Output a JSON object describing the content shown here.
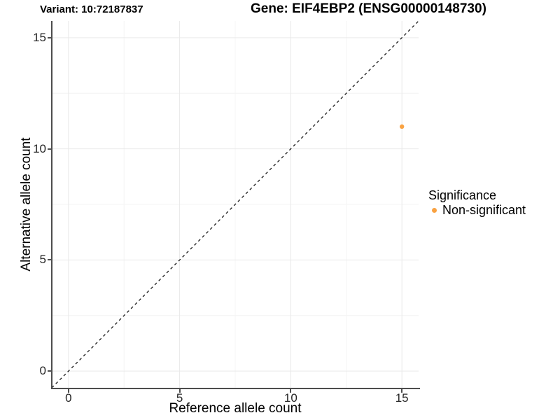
{
  "chart_data": {
    "type": "scatter",
    "title_left": "Variant: 10:72187837",
    "title_right": "Gene: EIF4EBP2 (ENSG00000148730)",
    "xlabel": "Reference allele count",
    "ylabel": "Alternative allele count",
    "xlim": [
      -0.75,
      15.75
    ],
    "ylim": [
      -0.75,
      15.75
    ],
    "x_ticks": [
      0,
      5,
      10,
      15
    ],
    "y_ticks": [
      0,
      5,
      10,
      15
    ],
    "x_minor_ticks": [
      2.5,
      7.5,
      12.5
    ],
    "y_minor_ticks": [
      2.5,
      7.5,
      12.5
    ],
    "grid": true,
    "legend_position": "right",
    "series": [
      {
        "name": "Non-significant",
        "color": "#F9A242",
        "points": [
          {
            "x": 15,
            "y": 11
          }
        ]
      }
    ],
    "reference_line": {
      "type": "identity",
      "slope": 1,
      "intercept": 0,
      "style": "dashed",
      "color": "#1a1a1a"
    },
    "legend": {
      "title": "Significance",
      "items": [
        {
          "label": "Non-significant",
          "color": "#F9A242"
        }
      ]
    },
    "colors": {
      "grid_major": "#e9e9e9",
      "grid_minor": "#f4f4f4",
      "axis": "#4d4d4d",
      "point": "#F9A242",
      "background": "#ffffff"
    }
  }
}
